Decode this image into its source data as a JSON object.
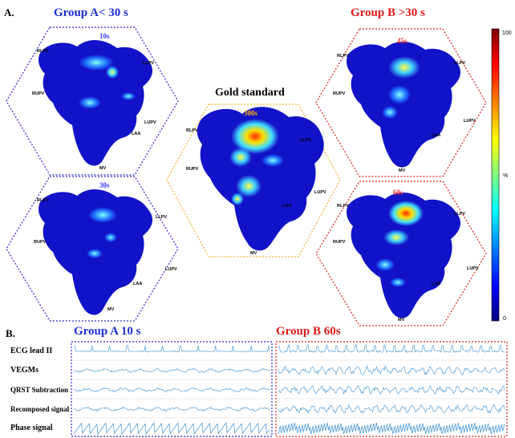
{
  "panelA": {
    "letter": "A.",
    "groupA_title": "Group A< 30 s",
    "groupB_title": "Group B >30 s",
    "gold_title": "Gold standard",
    "maps": [
      {
        "time": "10s",
        "labels": [
          "RLPV",
          "LLPV",
          "RUPV",
          "LUPV",
          "LAA",
          "MV"
        ]
      },
      {
        "time": "30s",
        "labels": [
          "RLPV",
          "LLPV",
          "RUPV",
          "LUPV",
          "LAA",
          "MV"
        ]
      },
      {
        "time": "300s",
        "labels": [
          "RLPV",
          "LLPV",
          "RUPV",
          "LUPV",
          "LAA",
          "MV"
        ]
      },
      {
        "time": "45s",
        "labels": [
          "RLPV",
          "LLPV",
          "RUPV",
          "LUPV",
          "LAA",
          "MV"
        ]
      },
      {
        "time": "60s",
        "labels": [
          "RLPV",
          "LLPV",
          "RUPV",
          "LUPV",
          "LAA",
          "MV"
        ]
      }
    ],
    "colorbar": {
      "max": "100",
      "min": "0",
      "unit": "%",
      "colors": [
        "#00007f",
        "#0000ff",
        "#00ffff",
        "#ffff00",
        "#ff0000",
        "#7f0000"
      ]
    }
  },
  "panelB": {
    "letter": "B.",
    "groupA_title": "Group A  10 s",
    "groupB_title": "Group B  60s",
    "rows": [
      "ECG lead II",
      "VEGMs",
      "QRST Subtraction",
      "Recomposed signal",
      "Phase signal"
    ]
  }
}
